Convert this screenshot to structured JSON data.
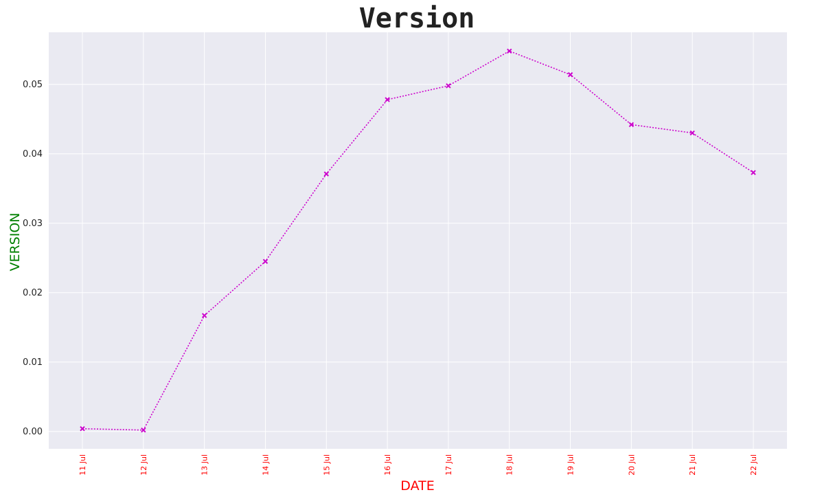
{
  "chart_data": {
    "type": "line",
    "title": "Version",
    "xlabel": "DATE",
    "ylabel": "VERSION",
    "categories": [
      "11 Jul",
      "12 Jul",
      "13 Jul",
      "14 Jul",
      "15 Jul",
      "16 Jul",
      "17 Jul",
      "18 Jul",
      "19 Jul",
      "20 Jul",
      "21 Jul",
      "22 Jul"
    ],
    "series": [
      {
        "values": [
          0.0004,
          0.0002,
          0.0167,
          0.0245,
          0.0371,
          0.0478,
          0.0498,
          0.0548,
          0.0514,
          0.0442,
          0.043,
          0.0373
        ]
      }
    ],
    "ylim": [
      -0.0025,
      0.0575
    ],
    "yticks": [
      0.0,
      0.01,
      0.02,
      0.03,
      0.04,
      0.05
    ],
    "ytick_labels": [
      "0.00",
      "0.01",
      "0.02",
      "0.03",
      "0.04",
      "0.05"
    ],
    "grid": true,
    "style": {
      "plot_bg": "#eaeaf2",
      "grid_color": "#ffffff",
      "line_color": "#cc00cc",
      "marker_color": "#cc00cc",
      "xlabel_color": "#ff0000",
      "ylabel_color": "#008000",
      "xtick_color": "#ff0000",
      "marker": "x",
      "line_style": "dotted"
    }
  }
}
